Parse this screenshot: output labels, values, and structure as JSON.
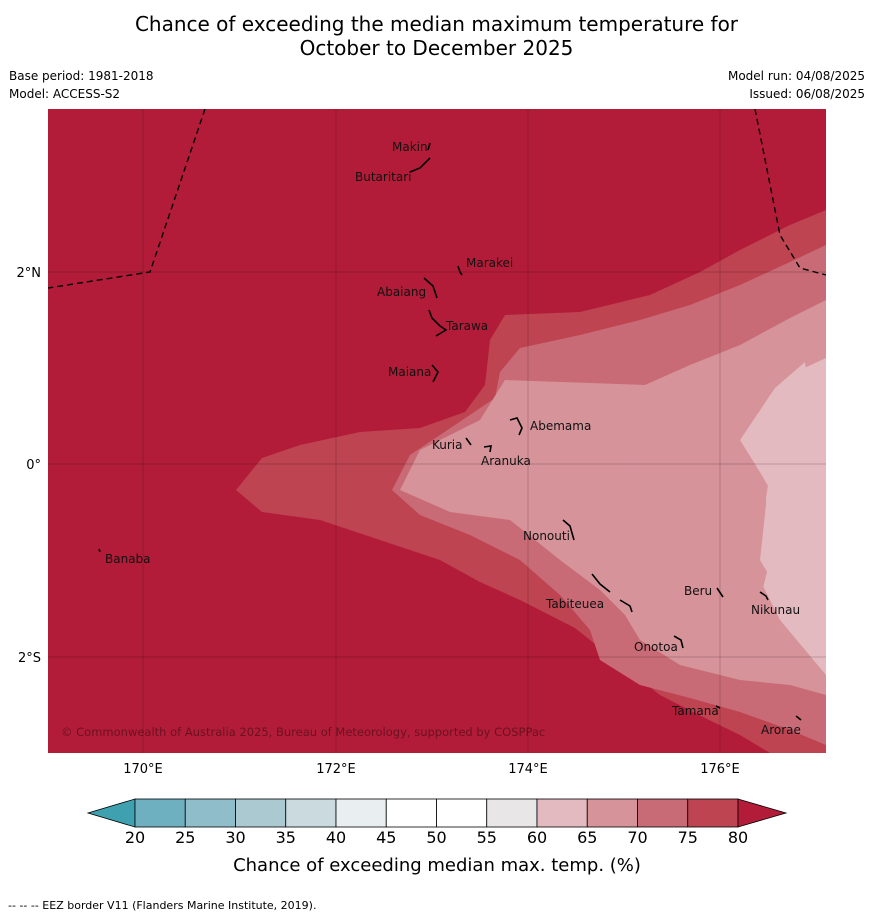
{
  "title": {
    "line1": "Chance of exceeding the median maximum temperature for",
    "line2": "October to December 2025"
  },
  "meta": {
    "base_period": "Base period: 1981-2018",
    "model": "Model: ACCESS-S2",
    "model_run": "Model run: 04/08/2025",
    "issued": "Issued: 06/08/2025"
  },
  "map": {
    "copyright": "© Commonwealth of Australia 2025, Bureau of Meteorology, supported by COSPPac",
    "lon_ticks": [
      "170°E",
      "172°E",
      "174°E",
      "176°E"
    ],
    "lat_ticks": [
      "2°N",
      "0°",
      "2°S"
    ],
    "islands": [
      {
        "name": "Makin"
      },
      {
        "name": "Butaritari"
      },
      {
        "name": "Marakei"
      },
      {
        "name": "Abaiang"
      },
      {
        "name": "Tarawa"
      },
      {
        "name": "Maiana"
      },
      {
        "name": "Abemama"
      },
      {
        "name": "Kuria"
      },
      {
        "name": "Aranuka"
      },
      {
        "name": "Banaba"
      },
      {
        "name": "Nonouti"
      },
      {
        "name": "Tabiteuea"
      },
      {
        "name": "Beru"
      },
      {
        "name": "Nikunau"
      },
      {
        "name": "Onotoa"
      },
      {
        "name": "Tamana"
      },
      {
        "name": "Arorae"
      }
    ]
  },
  "colorbar": {
    "ticks": [
      "20",
      "25",
      "30",
      "35",
      "40",
      "45",
      "50",
      "55",
      "60",
      "65",
      "70",
      "75",
      "80"
    ],
    "label": "Chance of exceeding median max. temp. (%)",
    "colors": [
      "#3fa0b0",
      "#6fb0c0",
      "#8fbdca",
      "#abc9d0",
      "#cadadf",
      "#e9eef0",
      "#ffffff",
      "#ffffff",
      "#e8e6e6",
      "#e3bac0",
      "#d6939a",
      "#c96b76",
      "#be4452",
      "#b31c38"
    ]
  },
  "footnote": "--  --  -- EEZ border V11 (Flanders Marine Institute, 2019)."
}
